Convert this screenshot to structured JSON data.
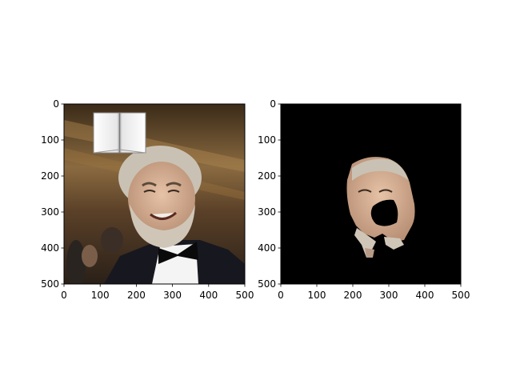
{
  "chart_data": [
    {
      "type": "image",
      "title": "",
      "xlabel": "",
      "ylabel": "",
      "xlim": [
        0,
        500
      ],
      "ylim": [
        500,
        0
      ],
      "xticks": [
        0,
        100,
        200,
        300,
        400,
        500
      ],
      "yticks": [
        0,
        100,
        200,
        300,
        400,
        500
      ],
      "content": "photo",
      "grid": false
    },
    {
      "type": "image",
      "title": "",
      "xlabel": "",
      "ylabel": "",
      "xlim": [
        0,
        500
      ],
      "ylim": [
        500,
        0
      ],
      "xticks": [
        0,
        100,
        200,
        300,
        400,
        500
      ],
      "yticks": [
        0,
        100,
        200,
        300,
        400,
        500
      ],
      "content": "mask",
      "background_color": "#000000",
      "grid": false
    }
  ],
  "colors": {
    "skin": "#d9b49a",
    "hair": "#c9c2b4",
    "mask_bg": "#000000",
    "suit": "#17171f"
  }
}
